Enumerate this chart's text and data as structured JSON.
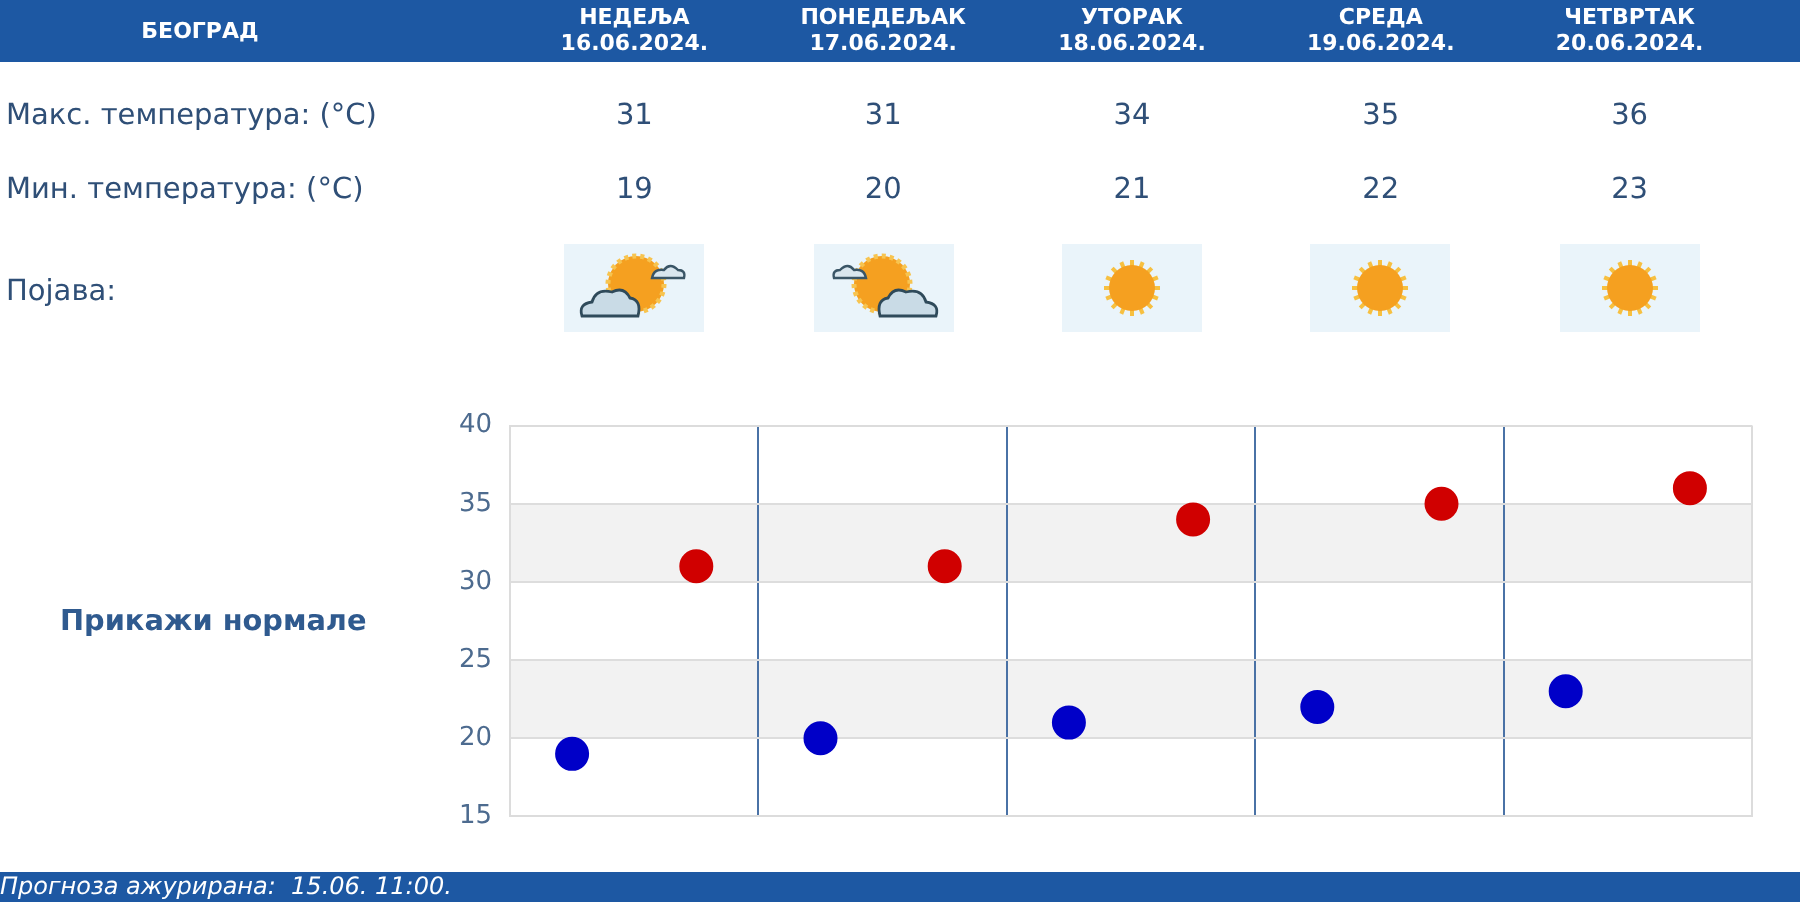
{
  "chart_data": {
    "type": "scatter",
    "title": "БЕОГРАД",
    "categories": [
      null,
      null,
      null,
      null,
      null
    ],
    "series": [
      {
        "color": "#d00000",
        "values": [
          31,
          31,
          34,
          35,
          36
        ]
      },
      {
        "color": "#0000c8",
        "values": [
          19,
          20,
          21,
          22,
          23
        ]
      }
    ],
    "ylim": [
      15,
      40
    ],
    "yticks": [
      15,
      20,
      25,
      30,
      35,
      40
    ],
    "bands": [
      {
        "axis": "y",
        "from": 20,
        "to": 25,
        "color": "#f2f2f2"
      },
      {
        "axis": "y",
        "from": 30,
        "to": 35,
        "color": "#f2f2f2"
      }
    ],
    "grid": true,
    "marker": "circle",
    "data_labels": true,
    "annotations": [
      "НЕДЕЉА 16.06.2024.",
      "ПОНЕДЕЉАК 17.06.2024.",
      "УТОРАК 18.06.2024.",
      "СРЕДА 19.06.2024.",
      "ЧЕТВРТАК 20.06.2024.",
      "Макс. температура: (°C)",
      "Мин. температура: (°C)",
      "Појава:",
      "Прикажи нормале",
      "Прогноза ажурирана:  15.06. 11:00."
    ]
  }
}
